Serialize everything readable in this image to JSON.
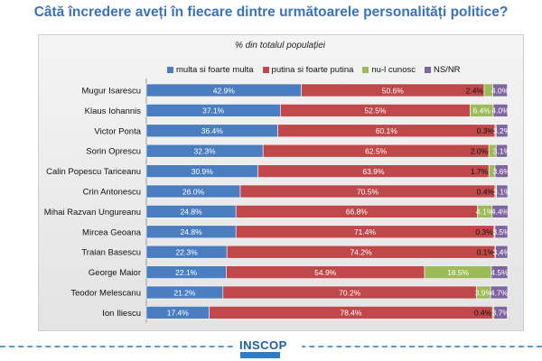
{
  "title": "Câtă încredere aveți în fiecare dintre următoarele personalități politice?",
  "subtitle": "% din totalul populației",
  "logo": {
    "text": "INSCOP"
  },
  "colors": {
    "s1": "#4a7ec1",
    "s2": "#c0484a",
    "s3": "#9bbb59",
    "s4": "#8064a2"
  },
  "chart_data": {
    "type": "bar",
    "orientation": "horizontal",
    "stacked": "percent",
    "xlim": [
      0,
      100
    ],
    "legend_position": "top",
    "categories": [
      "Mugur Isarescu",
      "Klaus Iohannis",
      "Victor Ponta",
      "Sorin Oprescu",
      "Calin Popescu Tariceanu",
      "Crin Antonescu",
      "Mihai Razvan Ungureanu",
      "Mircea Geoana",
      "Traian Basescu",
      "George Maior",
      "Teodor Melescanu",
      "Ion Iliescu"
    ],
    "series": [
      {
        "name": "multa si foarte multa",
        "values": [
          42.9,
          37.1,
          36.4,
          32.3,
          30.9,
          26.0,
          24.8,
          24.8,
          22.3,
          22.1,
          21.2,
          17.4
        ],
        "labels": [
          "42.9%",
          "37.1%",
          "36.4%",
          "32.3%",
          "30.9%",
          "26.0%",
          "24.8%",
          "24.8%",
          "22.3%",
          "22.1%",
          "21.2%",
          "17.4%"
        ]
      },
      {
        "name": "putina si foarte putina",
        "values": [
          50.6,
          52.5,
          60.1,
          62.5,
          63.9,
          70.5,
          66.8,
          71.4,
          74.2,
          54.9,
          70.2,
          78.4
        ],
        "labels": [
          "50.6%",
          "52.5%",
          "60.1%",
          "62.5%",
          "63.9%",
          "70.5%",
          "66.8%",
          "71.4%",
          "74.2%",
          "54.9%",
          "70.2%",
          "78.4%"
        ]
      },
      {
        "name": "nu-l cunosc",
        "values": [
          2.4,
          6.4,
          0.3,
          2.0,
          1.7,
          0.4,
          4.1,
          0.3,
          0.1,
          18.5,
          3.9,
          0.4
        ],
        "labels": [
          "2.4%",
          "6.4%",
          "0.3%",
          "2.0%",
          "1.7%",
          "0.4%",
          "4.1%",
          "0.3%",
          "0.1%",
          "18.5%",
          "3.9%",
          "0.4%"
        ]
      },
      {
        "name": "NS/NR",
        "values": [
          4.0,
          4.0,
          3.2,
          3.1,
          3.6,
          3.1,
          4.4,
          3.5,
          3.4,
          4.5,
          4.7,
          3.7
        ],
        "labels": [
          "4.0%",
          "4.0%",
          "3.2%",
          "3.1%",
          "3.6%",
          "3.1%",
          "4.4%",
          "3.5%",
          "3.4%",
          "4.5%",
          "4.7%",
          "3.7%"
        ]
      }
    ]
  }
}
